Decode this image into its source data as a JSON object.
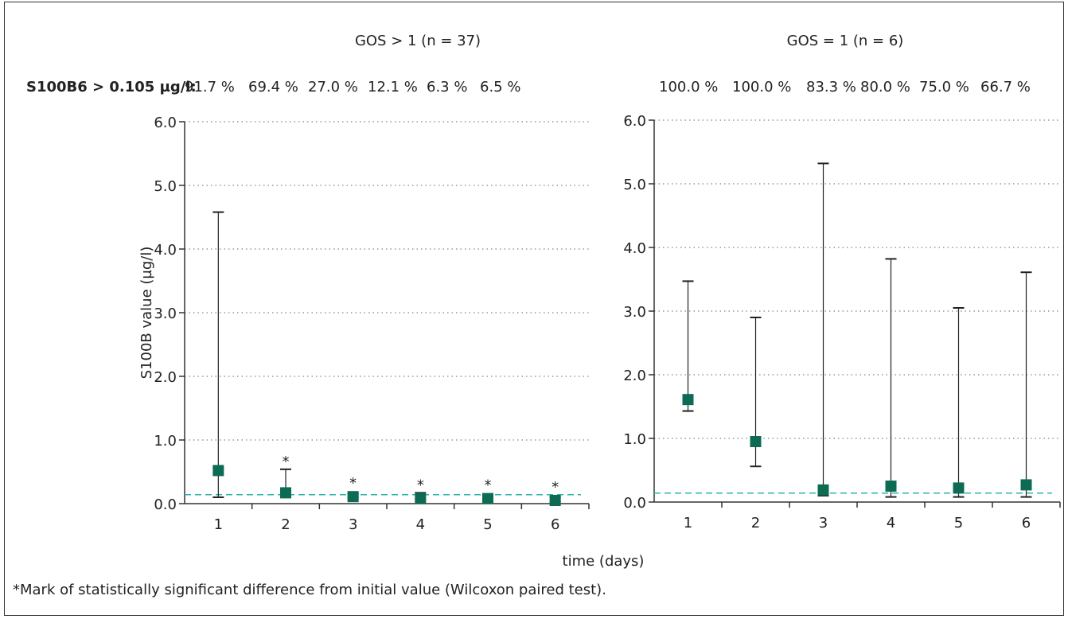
{
  "chart_data": [
    {
      "type": "scatter",
      "title": "GOS > 1 (n = 37)",
      "ylabel": "S100B value (µg/l)",
      "ylim": [
        0,
        6
      ],
      "yticks": [
        "0.0",
        "1.0",
        "2.0",
        "3.0",
        "4.0",
        "5.0",
        "6.0"
      ],
      "categories": [
        "1",
        "2",
        "3",
        "4",
        "5",
        "6"
      ],
      "percent_label": "S100B6 > 0.105 µg/l:",
      "percentages": [
        "91.7 %",
        "69.4 %",
        "27.0 %",
        "12.1 %",
        "6.3 %",
        "6.5 %"
      ],
      "median": [
        0.52,
        0.17,
        0.11,
        0.08,
        0.08,
        0.05
      ],
      "error_high": [
        4.58,
        0.54,
        0.15,
        0.17,
        0.14,
        0.1
      ],
      "error_low": [
        0.1,
        0.1,
        0.09,
        0.07,
        0.05,
        0.03
      ],
      "significance": [
        "",
        "*",
        "*",
        "*",
        "*",
        "*"
      ],
      "reference_line": 0.14,
      "grid": true
    },
    {
      "type": "scatter",
      "title": "GOS = 1 (n = 6)",
      "ylim": [
        0,
        6
      ],
      "yticks": [
        "0.0",
        "1.0",
        "2.0",
        "3.0",
        "4.0",
        "5.0",
        "6.0"
      ],
      "categories": [
        "1",
        "2",
        "3",
        "4",
        "5",
        "6"
      ],
      "percentages": [
        "100.0 %",
        "100.0 %",
        "83.3 %",
        "80.0 %",
        "75.0 %",
        "66.7 %"
      ],
      "median": [
        1.61,
        0.95,
        0.19,
        0.25,
        0.22,
        0.27
      ],
      "error_high": [
        3.47,
        2.9,
        5.32,
        3.82,
        3.05,
        3.61
      ],
      "error_low": [
        1.43,
        0.56,
        0.1,
        0.08,
        0.08,
        0.08
      ],
      "significance": [
        "",
        "",
        "",
        "",
        "",
        ""
      ],
      "reference_line": 0.14,
      "grid": true
    }
  ],
  "xlabel": "time (days)",
  "footnote": "*Mark of statistically significant difference from initial value (Wilcoxon paired test).",
  "colors": {
    "marker": "#0d6b54",
    "reference": "#2bb5ad",
    "grid": "#666666",
    "axis": "#333333"
  }
}
